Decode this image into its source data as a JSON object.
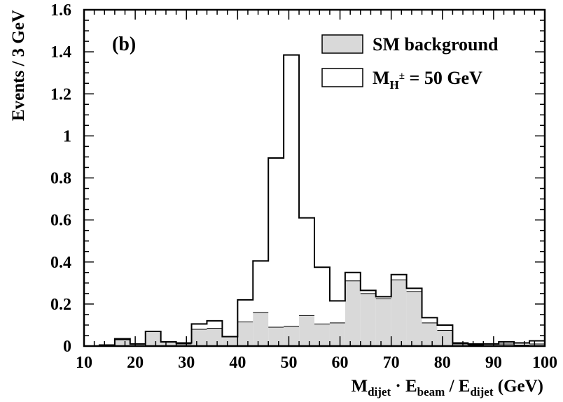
{
  "chart_data": {
    "type": "histogram",
    "panel_label": "(b)",
    "ylabel": "Events / 3 GeV",
    "xlabel_parts": {
      "m": "M",
      "m_sub": "dijet",
      "dot": " · ",
      "e1": "E",
      "e1_sub": "beam",
      "slash": " / ",
      "e2": "E",
      "e2_sub": "dijet",
      "unit": " (GeV)"
    },
    "xlim": [
      10,
      100
    ],
    "ylim": [
      0,
      1.6
    ],
    "x_ticks": [
      "10",
      "20",
      "30",
      "40",
      "50",
      "60",
      "70",
      "80",
      "90",
      "100"
    ],
    "y_ticks": [
      "0",
      "0.2",
      "0.4",
      "0.6",
      "0.8",
      "1",
      "1.2",
      "1.4",
      "1.6"
    ],
    "bin_edges": [
      10,
      13,
      16,
      19,
      22,
      25,
      28,
      31,
      34,
      37,
      40,
      43,
      46,
      49,
      52,
      55,
      58,
      61,
      64,
      67,
      70,
      73,
      76,
      79,
      82,
      85,
      88,
      91,
      94,
      97,
      100
    ],
    "legend": {
      "background_label": "SM background",
      "signal_prefix": "M",
      "signal_sub": "H",
      "signal_sup": "±",
      "signal_suffix": " = 50 GeV"
    },
    "series": [
      {
        "name": "SM background",
        "kind": "filled",
        "color": "#d9d9d9",
        "values": [
          0.0,
          0.005,
          0.03,
          0.01,
          0.07,
          0.02,
          0.01,
          0.08,
          0.085,
          0.045,
          0.115,
          0.16,
          0.09,
          0.095,
          0.145,
          0.105,
          0.11,
          0.31,
          0.25,
          0.225,
          0.315,
          0.26,
          0.11,
          0.075,
          0.01,
          0.005,
          0.01,
          0.01,
          0.005,
          0.01
        ]
      },
      {
        "name": "M_H± = 50 GeV",
        "kind": "outline",
        "color": "#000000",
        "values": [
          0.0,
          0.005,
          0.035,
          0.01,
          0.07,
          0.02,
          0.015,
          0.105,
          0.12,
          0.045,
          0.22,
          0.405,
          0.895,
          1.385,
          0.61,
          0.375,
          0.215,
          0.35,
          0.265,
          0.235,
          0.34,
          0.275,
          0.135,
          0.1,
          0.015,
          0.01,
          0.01,
          0.02,
          0.015,
          0.025
        ]
      }
    ]
  }
}
